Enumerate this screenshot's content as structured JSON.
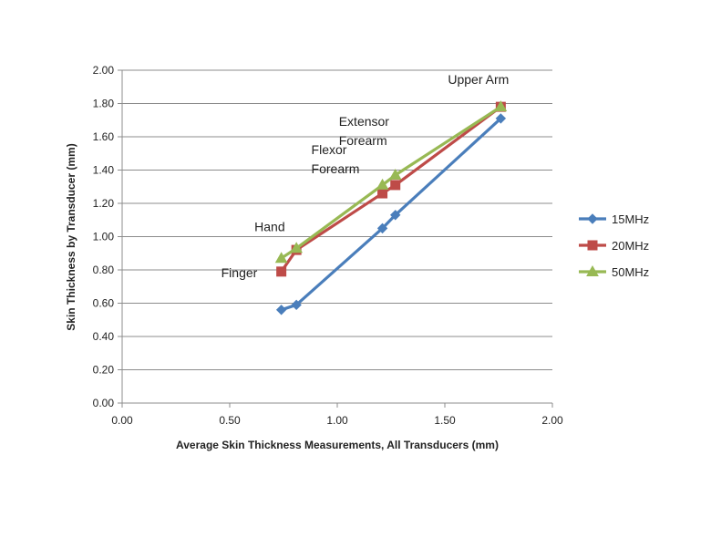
{
  "chart_data": {
    "type": "line",
    "title": "",
    "xlabel": "Average Skin Thickness Measurements, All Transducers (mm)",
    "ylabel": "Skin Thickness by Transducer (mm)",
    "xlim": [
      0,
      2
    ],
    "ylim": [
      0,
      2
    ],
    "x_ticks": [
      "0.00",
      "0.50",
      "1.00",
      "1.50",
      "2.00"
    ],
    "y_ticks": [
      "0.00",
      "0.20",
      "0.40",
      "0.60",
      "0.80",
      "1.00",
      "1.20",
      "1.40",
      "1.60",
      "1.80",
      "2.00"
    ],
    "grid": "horizontal",
    "legend_position": "right",
    "series": [
      {
        "name": "15MHz",
        "color": "#4a7ebb",
        "marker": "diamond",
        "points": [
          [
            0.74,
            0.56
          ],
          [
            0.81,
            0.59
          ],
          [
            1.21,
            1.05
          ],
          [
            1.27,
            1.13
          ],
          [
            1.76,
            1.71
          ]
        ]
      },
      {
        "name": "20MHz",
        "color": "#be4b48",
        "marker": "square",
        "points": [
          [
            0.74,
            0.79
          ],
          [
            0.81,
            0.92
          ],
          [
            1.21,
            1.26
          ],
          [
            1.27,
            1.31
          ],
          [
            1.76,
            1.78
          ]
        ]
      },
      {
        "name": "50MHz",
        "color": "#98b954",
        "marker": "triangle",
        "points": [
          [
            0.74,
            0.87
          ],
          [
            0.81,
            0.93
          ],
          [
            1.21,
            1.31
          ],
          [
            1.27,
            1.37
          ],
          [
            1.76,
            1.78
          ]
        ]
      }
    ],
    "annotations": [
      {
        "lines": [
          "Finger"
        ],
        "x": 0.74,
        "y": 0.79
      },
      {
        "lines": [
          "Hand"
        ],
        "x": 0.81,
        "y": 0.93
      },
      {
        "lines": [
          "Flexor",
          "Forearm"
        ],
        "x": 1.21,
        "y": 1.31
      },
      {
        "lines": [
          "Extensor",
          "Forearm"
        ],
        "x": 1.27,
        "y": 1.37
      },
      {
        "lines": [
          "Upper Arm"
        ],
        "x": 1.76,
        "y": 1.78
      }
    ]
  }
}
